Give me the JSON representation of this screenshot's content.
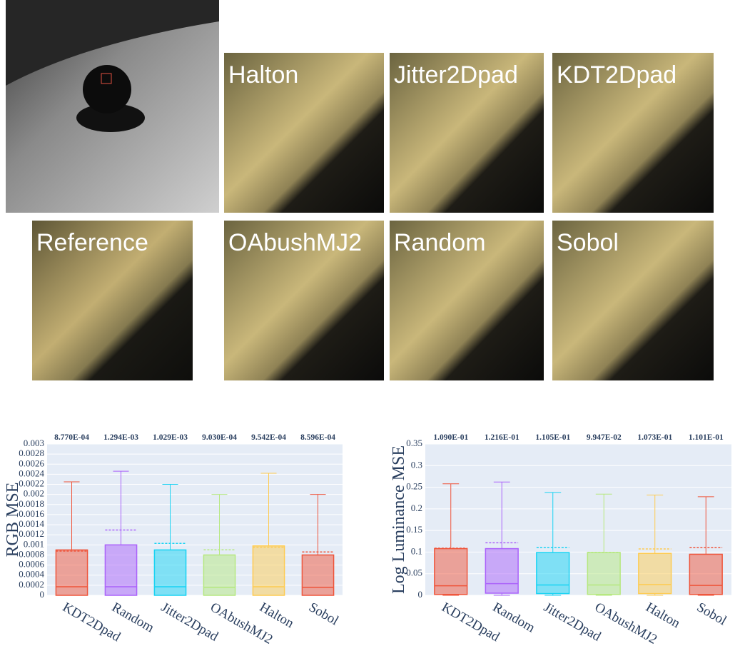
{
  "images": {
    "labels": [
      "Halton",
      "Jitter2Dpad",
      "KDT2Dpad",
      "Reference",
      "OAbushMJ2",
      "Random",
      "Sobol"
    ]
  },
  "chart_data": [
    {
      "type": "box",
      "ylabel": "RGB MSE",
      "categories": [
        "KDT2Dpad",
        "Random",
        "Jitter2Dpad",
        "OAbushMJ2",
        "Halton",
        "Sobol"
      ],
      "colors": [
        "#ef553b",
        "#ab63fa",
        "#19d3f3",
        "#b6e880",
        "#fecb52",
        "#ef553b"
      ],
      "boxes": [
        {
          "min": 0,
          "q1": 0,
          "median": 0.00017,
          "q3": 0.0009,
          "max": 0.00225
        },
        {
          "min": 0,
          "q1": 0,
          "median": 0.00017,
          "q3": 0.001,
          "max": 0.00246
        },
        {
          "min": 0,
          "q1": 0,
          "median": 0.00017,
          "q3": 0.0009,
          "max": 0.0022
        },
        {
          "min": 0,
          "q1": 0,
          "median": 0.00016,
          "q3": 0.0008,
          "max": 0.002
        },
        {
          "min": 0,
          "q1": 0,
          "median": 0.00017,
          "q3": 0.00098,
          "max": 0.00242
        },
        {
          "min": 0,
          "q1": 0,
          "median": 0.00016,
          "q3": 0.0008,
          "max": 0.002
        }
      ],
      "values": [
        0.000877,
        0.001294,
        0.001029,
        0.000903,
        0.0009542,
        0.0008596
      ],
      "value_labels": [
        "8.770E-04",
        "1.294E-03",
        "1.029E-03",
        "9.030E-04",
        "9.542E-04",
        "8.596E-04"
      ],
      "ylim": [
        0,
        0.003
      ],
      "yticks": [
        0,
        0.0002,
        0.0004,
        0.0006,
        0.0008,
        0.001,
        0.0012,
        0.0014,
        0.0016,
        0.0018,
        0.002,
        0.0022,
        0.0024,
        0.0026,
        0.0028,
        0.003
      ],
      "grid": true
    },
    {
      "type": "box",
      "ylabel": "Log Luminance MSE",
      "categories": [
        "KDT2Dpad",
        "Random",
        "Jitter2Dpad",
        "OAbushMJ2",
        "Halton",
        "Sobol"
      ],
      "colors": [
        "#ef553b",
        "#ab63fa",
        "#19d3f3",
        "#b6e880",
        "#fecb52",
        "#ef553b"
      ],
      "boxes": [
        {
          "min": 0,
          "q1": 0.002,
          "median": 0.022,
          "q3": 0.108,
          "max": 0.258
        },
        {
          "min": 0,
          "q1": 0.005,
          "median": 0.027,
          "q3": 0.108,
          "max": 0.262
        },
        {
          "min": 0,
          "q1": 0.004,
          "median": 0.024,
          "q3": 0.099,
          "max": 0.238
        },
        {
          "min": 0,
          "q1": 0.002,
          "median": 0.024,
          "q3": 0.099,
          "max": 0.234
        },
        {
          "min": 0,
          "q1": 0.004,
          "median": 0.025,
          "q3": 0.097,
          "max": 0.232
        },
        {
          "min": 0,
          "q1": 0.002,
          "median": 0.023,
          "q3": 0.095,
          "max": 0.228
        }
      ],
      "values": [
        0.109,
        0.1216,
        0.1105,
        0.09947,
        0.1073,
        0.1101
      ],
      "value_labels": [
        "1.090E-01",
        "1.216E-01",
        "1.105E-01",
        "9.947E-02",
        "1.073E-01",
        "1.101E-01"
      ],
      "ylim": [
        0,
        0.35
      ],
      "yticks": [
        0,
        0.05,
        0.1,
        0.15,
        0.2,
        0.25,
        0.3,
        0.35
      ],
      "grid": true
    }
  ]
}
